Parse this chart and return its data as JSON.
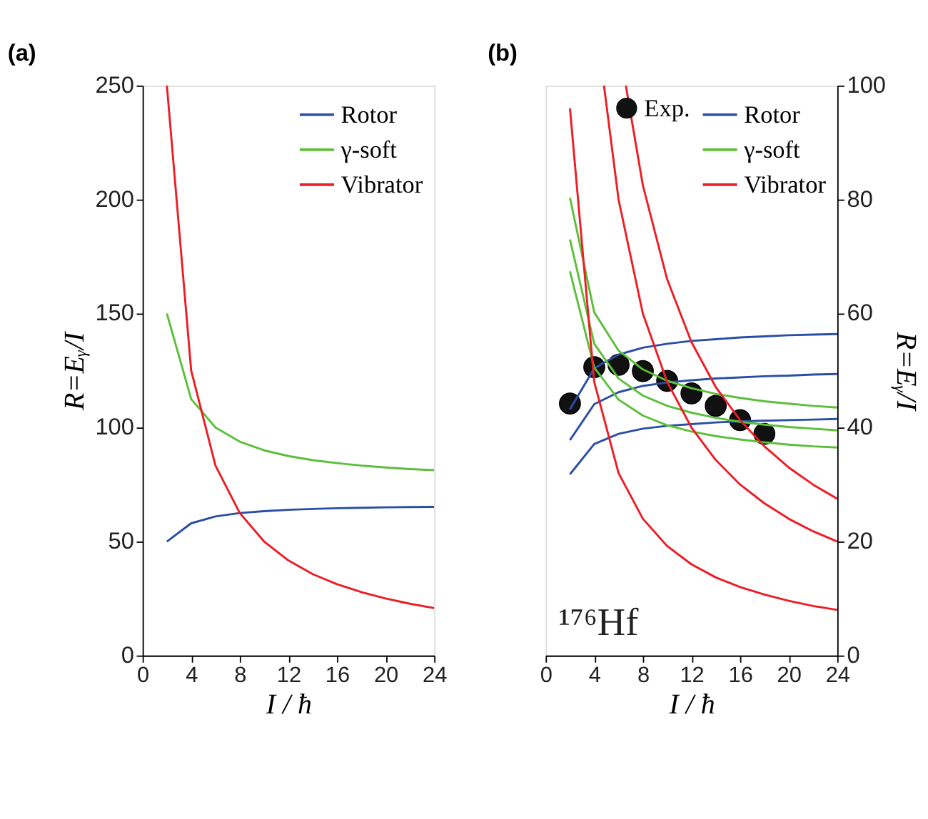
{
  "chart_data": [
    {
      "type": "line",
      "title": "(a)",
      "xlabel": "I / ħ",
      "ylabel": "R=Eᵧ/I",
      "xlim": [
        0,
        24
      ],
      "xticks": [
        0,
        4,
        8,
        12,
        16,
        20,
        24
      ],
      "ylim": [
        0,
        250
      ],
      "yticks": [
        0,
        50,
        100,
        150,
        200,
        250
      ],
      "grid": false,
      "legend": "top right",
      "line_style": "solid",
      "x": [
        2,
        4,
        6,
        8,
        10,
        12,
        14,
        16,
        18,
        20,
        22,
        24
      ],
      "series": [
        {
          "name": "Rotor",
          "color": "#2a4ea6",
          "values": [
            50,
            58,
            61,
            62.5,
            63.3,
            63.9,
            64.3,
            64.6,
            64.8,
            65,
            65.1,
            65.2
          ]
        },
        {
          "name": "γ-soft",
          "color": "#5cbf3a",
          "values": [
            150,
            112.5,
            100,
            93.8,
            90,
            87.5,
            85.7,
            84.4,
            83.3,
            82.5,
            81.8,
            81.3
          ]
        },
        {
          "name": "Vibrator",
          "color": "#ee1c24",
          "values": [
            250,
            125,
            83.3,
            62.5,
            50,
            41.7,
            35.7,
            31.3,
            27.8,
            25,
            22.7,
            20.8
          ]
        }
      ]
    },
    {
      "type": "line",
      "title": "(b)",
      "xlabel": "I / ħ",
      "y2label": "R=Eᵧ/I",
      "xlim": [
        0,
        24
      ],
      "xticks": [
        0,
        4,
        8,
        12,
        16,
        20,
        24
      ],
      "y2lim": [
        0,
        100
      ],
      "y2ticks": [
        0,
        20,
        40,
        60,
        80,
        100
      ],
      "grid": false,
      "legend": "top right",
      "line_style": "solid",
      "annotations": [
        "¹⁷⁶Hf"
      ],
      "x": [
        2,
        4,
        6,
        8,
        10,
        12,
        14,
        16,
        18,
        20,
        22,
        24
      ],
      "series": [
        {
          "name": "Exp.",
          "type": "scatter",
          "marker": "circle",
          "color": "#111111",
          "axis": "y2",
          "x": [
            2,
            4,
            6,
            8,
            10,
            12,
            14,
            16,
            18
          ],
          "values": [
            44.2,
            50.6,
            51,
            49.9,
            48.2,
            46,
            43.8,
            41.3,
            38.9
          ]
        },
        {
          "name": "Rotor",
          "color": "#2a4ea6",
          "axis": "y2",
          "values": [
            43.2,
            50.4,
            52.8,
            54.0,
            54.7,
            55.2,
            55.5,
            55.8,
            56.0,
            56.2,
            56.3,
            56.4
          ]
        },
        {
          "color": "#2a4ea6",
          "axis": "y2",
          "values": [
            37.8,
            44.1,
            46.2,
            47.3,
            47.9,
            48.3,
            48.6,
            48.8,
            49.0,
            49.1,
            49.3,
            49.4
          ]
        },
        {
          "color": "#2a4ea6",
          "axis": "y2",
          "values": [
            31.8,
            37.1,
            38.9,
            39.8,
            40.3,
            40.6,
            40.9,
            41.1,
            41.2,
            41.3,
            41.4,
            41.5
          ]
        },
        {
          "name": "γ-soft",
          "color": "#5cbf3a",
          "axis": "y2",
          "values": [
            80.3,
            60.2,
            53.5,
            50.2,
            48.2,
            46.9,
            45.9,
            45.2,
            44.6,
            44.2,
            43.8,
            43.5
          ]
        },
        {
          "color": "#5cbf3a",
          "axis": "y2",
          "values": [
            73.0,
            54.7,
            48.6,
            45.6,
            43.8,
            42.6,
            41.7,
            41.0,
            40.5,
            40.1,
            39.8,
            39.5
          ]
        },
        {
          "color": "#5cbf3a",
          "axis": "y2",
          "values": [
            67.4,
            50.5,
            44.9,
            42.1,
            40.4,
            39.3,
            38.5,
            37.9,
            37.4,
            37.0,
            36.7,
            36.5
          ]
        },
        {
          "name": "Vibrator",
          "color": "#ee1c24",
          "axis": "y2",
          "x": [
            6.6,
            8,
            10,
            12,
            14,
            16,
            18,
            20,
            22,
            24
          ],
          "values": [
            100,
            82.5,
            66,
            55,
            47.1,
            41.3,
            36.7,
            33,
            30,
            27.5
          ]
        },
        {
          "color": "#ee1c24",
          "axis": "y2",
          "x": [
            4.8,
            6,
            8,
            10,
            12,
            14,
            16,
            18,
            20,
            22,
            24
          ],
          "values": [
            100,
            80,
            60,
            48,
            40,
            34.3,
            30,
            26.7,
            24,
            21.8,
            20
          ]
        },
        {
          "color": "#ee1c24",
          "axis": "y2",
          "x": [
            2,
            4,
            6,
            8,
            10,
            12,
            14,
            16,
            18,
            20,
            22,
            24
          ],
          "values": [
            96,
            48,
            32,
            24,
            19.2,
            16,
            13.7,
            12,
            10.7,
            9.6,
            8.7,
            8
          ]
        }
      ]
    }
  ]
}
